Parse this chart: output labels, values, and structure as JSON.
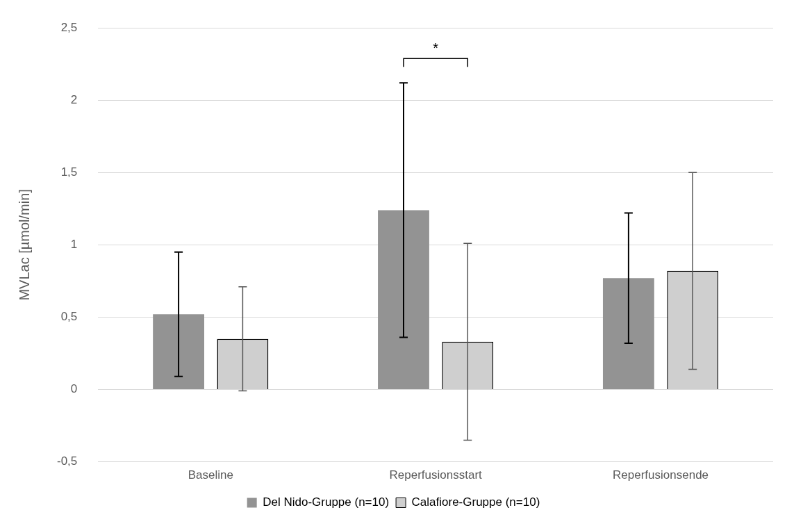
{
  "chart_data": {
    "type": "bar",
    "ylabel": "MVLac [µmol/min]",
    "categories": [
      "Baseline",
      "Reperfusionsstart",
      "Reperfusionsende"
    ],
    "series": [
      {
        "name": "Del Nido-Gruppe (n=10)",
        "color": "#939393",
        "values": [
          0.52,
          1.24,
          0.77
        ],
        "errors": [
          0.43,
          0.88,
          0.45
        ]
      },
      {
        "name": "Calafiore-Gruppe (n=10)",
        "color": "#cfcfcf",
        "values": [
          0.35,
          0.33,
          0.82
        ],
        "errors": [
          0.36,
          0.68,
          0.68
        ]
      }
    ],
    "ylim": [
      -0.5,
      2.5
    ],
    "yticks": [
      {
        "value": -0.5,
        "label": "-0,5"
      },
      0,
      {
        "value": 0.5,
        "label": "0,5"
      },
      1,
      {
        "value": 1.5,
        "label": "1,5"
      },
      2,
      {
        "value": 2.5,
        "label": "2,5"
      }
    ],
    "grid": "y",
    "legend": "bottom",
    "annotations": [
      "*"
    ]
  }
}
